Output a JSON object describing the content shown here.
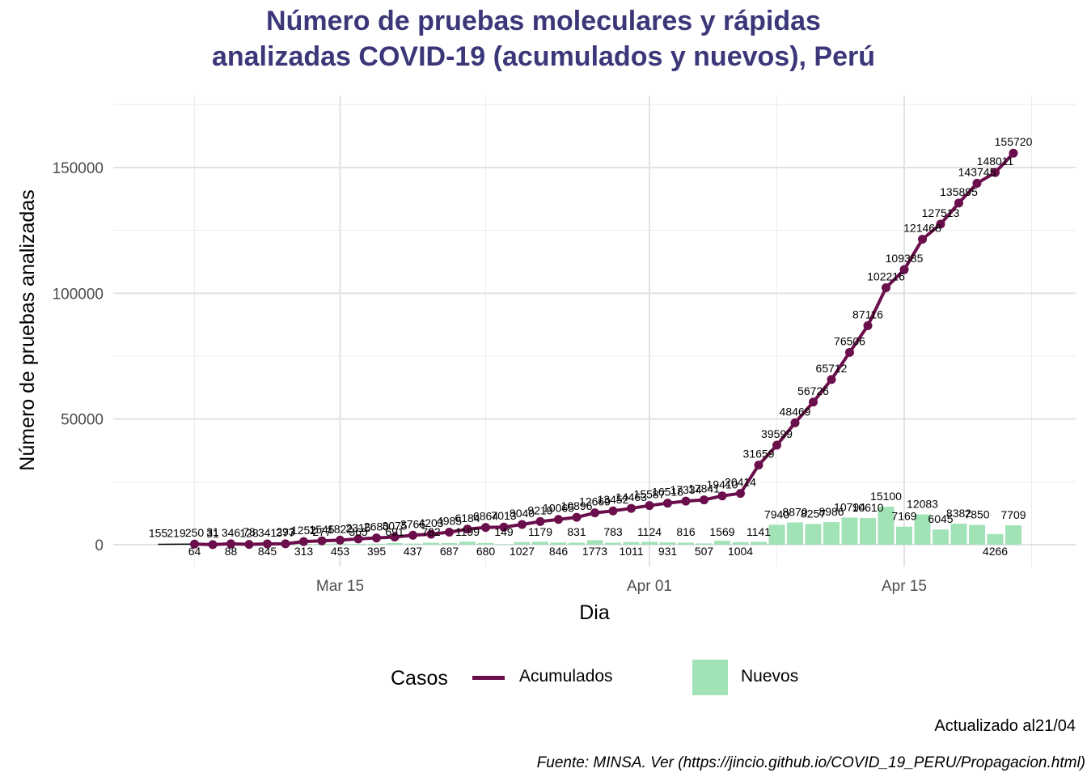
{
  "chart_data": {
    "type": "line",
    "title_lines": [
      "Número de pruebas moleculares y rápidas",
      "analizadas COVID-19 (acumulados y nuevos), Perú"
    ],
    "xlabel": "Dia",
    "ylabel": "Número de pruebas analizadas",
    "x_ticks": [
      "Mar 15",
      "Apr 01",
      "Apr 15"
    ],
    "y_ticks": [
      "0",
      "50000",
      "100000",
      "150000"
    ],
    "ylim": [
      -8000,
      175000
    ],
    "x_range": [
      "2020-03-04",
      "2020-04-23"
    ],
    "grid": true,
    "legend": {
      "title": "Casos",
      "position": "bottom",
      "items": [
        "Acumulados",
        "Nuevos"
      ]
    },
    "colors": {
      "acumulados": "#6b0f4c",
      "nuevos": "#a1e2b7",
      "title": "#3b3778"
    },
    "annotations": {
      "updated": "Actualizado al21/04",
      "source": "Fuente: MINSA. Ver (https://jincio.github.io/COVID_19_PERU/Propagacion.html)"
    },
    "series": [
      {
        "name": "Acumulados",
        "points": [
          {
            "date": "2020-03-05",
            "value": 155
          },
          {
            "date": "2020-03-06",
            "value": 219
          },
          {
            "date": "2020-03-07",
            "value": 250
          },
          {
            "date": "2020-03-08",
            "value": 31
          },
          {
            "date": "2020-03-09",
            "value": 346
          },
          {
            "date": "2020-03-10",
            "value": 128
          },
          {
            "date": "2020-03-11",
            "value": 341
          },
          {
            "date": "2020-03-12",
            "value": 377
          },
          {
            "date": "2020-03-13",
            "value": 1252
          },
          {
            "date": "2020-03-14",
            "value": 1545
          },
          {
            "date": "2020-03-15",
            "value": 1822
          },
          {
            "date": "2020-03-16",
            "value": 2315
          },
          {
            "date": "2020-03-17",
            "value": 2680
          },
          {
            "date": "2020-03-18",
            "value": 3075
          },
          {
            "date": "2020-03-19",
            "value": 3766
          },
          {
            "date": "2020-03-20",
            "value": 4203
          },
          {
            "date": "2020-03-21",
            "value": 4985
          },
          {
            "date": "2020-03-22",
            "value": 6184
          },
          {
            "date": "2020-03-23",
            "value": 6864
          },
          {
            "date": "2020-03-24",
            "value": 7013
          },
          {
            "date": "2020-03-25",
            "value": 8040
          },
          {
            "date": "2020-03-26",
            "value": 9219
          },
          {
            "date": "2020-03-27",
            "value": 10065
          },
          {
            "date": "2020-03-28",
            "value": 10896
          },
          {
            "date": "2020-03-29",
            "value": 12669
          },
          {
            "date": "2020-03-30",
            "value": 13452
          },
          {
            "date": "2020-03-31",
            "value": 14463
          },
          {
            "date": "2020-04-01",
            "value": 15587
          },
          {
            "date": "2020-04-02",
            "value": 16518
          },
          {
            "date": "2020-04-03",
            "value": 17334
          },
          {
            "date": "2020-04-04",
            "value": 17841
          },
          {
            "date": "2020-04-05",
            "value": 19410
          },
          {
            "date": "2020-04-06",
            "value": 20414
          },
          {
            "date": "2020-04-07",
            "value": 31659
          },
          {
            "date": "2020-04-08",
            "value": 39599
          },
          {
            "date": "2020-04-09",
            "value": 48469
          },
          {
            "date": "2020-04-10",
            "value": 56726
          },
          {
            "date": "2020-04-11",
            "value": 65712
          },
          {
            "date": "2020-04-12",
            "value": 76506
          },
          {
            "date": "2020-04-13",
            "value": 87116
          },
          {
            "date": "2020-04-14",
            "value": 102216
          },
          {
            "date": "2020-04-15",
            "value": 109385
          },
          {
            "date": "2020-04-16",
            "value": 121468
          },
          {
            "date": "2020-04-17",
            "value": 127513
          },
          {
            "date": "2020-04-18",
            "value": 135895
          },
          {
            "date": "2020-04-19",
            "value": 143745
          },
          {
            "date": "2020-04-20",
            "value": 148011
          },
          {
            "date": "2020-04-21",
            "value": 155720
          }
        ]
      },
      {
        "name": "Nuevos",
        "points": [
          {
            "date": "2020-03-07",
            "value": 64
          },
          {
            "date": "2020-03-08",
            "value": 31
          },
          {
            "date": "2020-03-09",
            "value": 88
          },
          {
            "date": "2020-03-10",
            "value": 78
          },
          {
            "date": "2020-03-11",
            "value": 845
          },
          {
            "date": "2020-03-12",
            "value": 293
          },
          {
            "date": "2020-03-13",
            "value": 313
          },
          {
            "date": "2020-03-14",
            "value": 277
          },
          {
            "date": "2020-03-15",
            "value": 453
          },
          {
            "date": "2020-03-16",
            "value": 365
          },
          {
            "date": "2020-03-17",
            "value": 395
          },
          {
            "date": "2020-03-18",
            "value": 691
          },
          {
            "date": "2020-03-19",
            "value": 437
          },
          {
            "date": "2020-03-20",
            "value": 782
          },
          {
            "date": "2020-03-21",
            "value": 687
          },
          {
            "date": "2020-03-22",
            "value": 1199
          },
          {
            "date": "2020-03-23",
            "value": 680
          },
          {
            "date": "2020-03-24",
            "value": 149
          },
          {
            "date": "2020-03-25",
            "value": 1027
          },
          {
            "date": "2020-03-26",
            "value": 1179
          },
          {
            "date": "2020-03-27",
            "value": 846
          },
          {
            "date": "2020-03-28",
            "value": 831
          },
          {
            "date": "2020-03-29",
            "value": 1773
          },
          {
            "date": "2020-03-30",
            "value": 783
          },
          {
            "date": "2020-03-31",
            "value": 1011
          },
          {
            "date": "2020-04-01",
            "value": 1124
          },
          {
            "date": "2020-04-02",
            "value": 931
          },
          {
            "date": "2020-04-03",
            "value": 816
          },
          {
            "date": "2020-04-04",
            "value": 507
          },
          {
            "date": "2020-04-05",
            "value": 1569
          },
          {
            "date": "2020-04-06",
            "value": 1004
          },
          {
            "date": "2020-04-07",
            "value": 1141
          },
          {
            "date": "2020-04-08",
            "value": 7940
          },
          {
            "date": "2020-04-09",
            "value": 8870
          },
          {
            "date": "2020-04-10",
            "value": 8257
          },
          {
            "date": "2020-04-11",
            "value": 8986
          },
          {
            "date": "2020-04-12",
            "value": 10794
          },
          {
            "date": "2020-04-13",
            "value": 10610
          },
          {
            "date": "2020-04-14",
            "value": 15100
          },
          {
            "date": "2020-04-15",
            "value": 7169
          },
          {
            "date": "2020-04-16",
            "value": 12083
          },
          {
            "date": "2020-04-17",
            "value": 6045
          },
          {
            "date": "2020-04-18",
            "value": 8382
          },
          {
            "date": "2020-04-19",
            "value": 7850
          },
          {
            "date": "2020-04-20",
            "value": 4266
          },
          {
            "date": "2020-04-21",
            "value": 7709
          }
        ]
      }
    ]
  }
}
